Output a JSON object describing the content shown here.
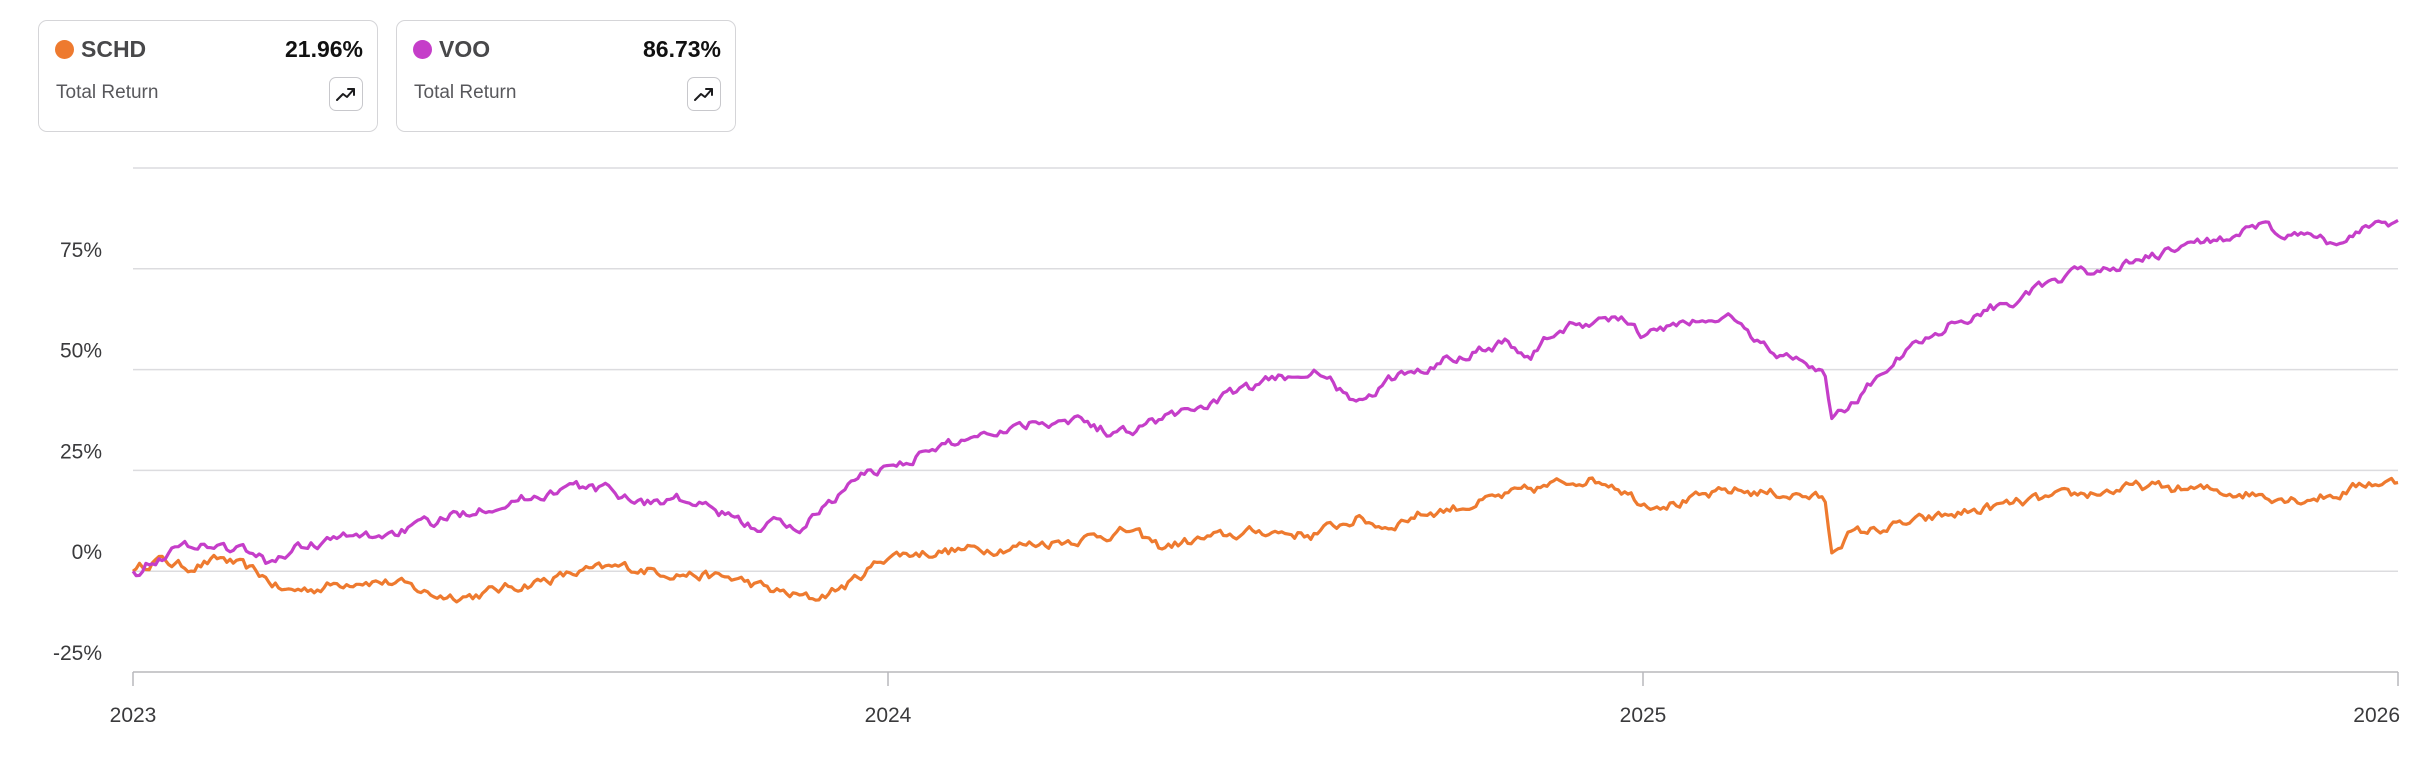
{
  "cards": [
    {
      "ticker": "SCHD",
      "value": "21.96%",
      "label": "Total Return",
      "color": "#ee7a2f",
      "icon": "trend-up-icon"
    },
    {
      "ticker": "VOO",
      "value": "86.73%",
      "label": "Total Return",
      "color": "#c53ec9",
      "icon": "trend-up-icon"
    }
  ],
  "chart_data": {
    "type": "line",
    "xlabel": "",
    "ylabel": "",
    "xlim": [
      2023.0,
      2026.0
    ],
    "ylim": [
      -25,
      100
    ],
    "x_ticks": [
      {
        "value": 2023,
        "label": "2023"
      },
      {
        "value": 2024,
        "label": "2024"
      },
      {
        "value": 2025,
        "label": "2025"
      },
      {
        "value": 2026,
        "label": "2026"
      }
    ],
    "y_ticks": [
      {
        "value": 75,
        "label": "75%"
      },
      {
        "value": 50,
        "label": "50%"
      },
      {
        "value": 25,
        "label": "25%"
      },
      {
        "value": 0,
        "label": "0%"
      },
      {
        "value": -25,
        "label": "-25%"
      }
    ],
    "grid": true,
    "legend": "top-left",
    "series": [
      {
        "name": "SCHD",
        "color": "#ee7a2f",
        "points": [
          [
            2023.0,
            0
          ],
          [
            2023.03,
            3
          ],
          [
            2023.07,
            1
          ],
          [
            2023.12,
            3
          ],
          [
            2023.17,
            -1
          ],
          [
            2023.2,
            -5
          ],
          [
            2023.25,
            -4
          ],
          [
            2023.3,
            -2
          ],
          [
            2023.35,
            -3
          ],
          [
            2023.4,
            -6
          ],
          [
            2023.45,
            -6
          ],
          [
            2023.5,
            -4
          ],
          [
            2023.55,
            -2
          ],
          [
            2023.6,
            0
          ],
          [
            2023.65,
            1
          ],
          [
            2023.7,
            0
          ],
          [
            2023.75,
            -1
          ],
          [
            2023.8,
            -2
          ],
          [
            2023.85,
            -5
          ],
          [
            2023.9,
            -7
          ],
          [
            2023.95,
            -3
          ],
          [
            2024.0,
            4
          ],
          [
            2024.08,
            5
          ],
          [
            2024.16,
            6
          ],
          [
            2024.25,
            8
          ],
          [
            2024.32,
            10
          ],
          [
            2024.36,
            6
          ],
          [
            2024.42,
            8
          ],
          [
            2024.5,
            10
          ],
          [
            2024.56,
            9
          ],
          [
            2024.62,
            13
          ],
          [
            2024.66,
            11
          ],
          [
            2024.7,
            14
          ],
          [
            2024.76,
            16
          ],
          [
            2024.85,
            20
          ],
          [
            2024.92,
            23
          ],
          [
            2024.96,
            22
          ],
          [
            2025.0,
            17
          ],
          [
            2025.05,
            17
          ],
          [
            2025.12,
            20
          ],
          [
            2025.2,
            19
          ],
          [
            2025.24,
            18
          ],
          [
            2025.25,
            5
          ],
          [
            2025.27,
            9
          ],
          [
            2025.33,
            11
          ],
          [
            2025.41,
            14
          ],
          [
            2025.5,
            17
          ],
          [
            2025.58,
            19
          ],
          [
            2025.66,
            21
          ],
          [
            2025.75,
            20
          ],
          [
            2025.82,
            19
          ],
          [
            2025.87,
            18
          ],
          [
            2025.92,
            19
          ],
          [
            2025.96,
            22
          ],
          [
            2026.0,
            22
          ]
        ]
      },
      {
        "name": "VOO",
        "color": "#c53ec9",
        "points": [
          [
            2023.0,
            0
          ],
          [
            2023.04,
            4
          ],
          [
            2023.08,
            7
          ],
          [
            2023.12,
            6
          ],
          [
            2023.15,
            5
          ],
          [
            2023.18,
            2
          ],
          [
            2023.22,
            6
          ],
          [
            2023.27,
            8
          ],
          [
            2023.33,
            9
          ],
          [
            2023.4,
            12
          ],
          [
            2023.46,
            16
          ],
          [
            2023.52,
            18
          ],
          [
            2023.58,
            21
          ],
          [
            2023.63,
            20
          ],
          [
            2023.68,
            17
          ],
          [
            2023.72,
            18
          ],
          [
            2023.77,
            15
          ],
          [
            2023.82,
            11
          ],
          [
            2023.85,
            12
          ],
          [
            2023.88,
            10
          ],
          [
            2023.92,
            17
          ],
          [
            2023.97,
            24
          ],
          [
            2024.0,
            26
          ],
          [
            2024.06,
            30
          ],
          [
            2024.12,
            34
          ],
          [
            2024.19,
            37
          ],
          [
            2024.25,
            38
          ],
          [
            2024.3,
            34
          ],
          [
            2024.35,
            37
          ],
          [
            2024.4,
            40
          ],
          [
            2024.46,
            44
          ],
          [
            2024.52,
            48
          ],
          [
            2024.56,
            50
          ],
          [
            2024.6,
            45
          ],
          [
            2024.63,
            41
          ],
          [
            2024.66,
            47
          ],
          [
            2024.7,
            50
          ],
          [
            2024.76,
            54
          ],
          [
            2024.82,
            57
          ],
          [
            2024.85,
            53
          ],
          [
            2024.88,
            59
          ],
          [
            2024.93,
            62
          ],
          [
            2024.97,
            63
          ],
          [
            2025.0,
            58
          ],
          [
            2025.04,
            61
          ],
          [
            2025.08,
            62
          ],
          [
            2025.12,
            63
          ],
          [
            2025.15,
            57
          ],
          [
            2025.18,
            54
          ],
          [
            2025.21,
            52
          ],
          [
            2025.24,
            50
          ],
          [
            2025.25,
            38
          ],
          [
            2025.27,
            40
          ],
          [
            2025.29,
            44
          ],
          [
            2025.33,
            52
          ],
          [
            2025.4,
            61
          ],
          [
            2025.5,
            68
          ],
          [
            2025.58,
            74
          ],
          [
            2025.66,
            77
          ],
          [
            2025.75,
            82
          ],
          [
            2025.82,
            85
          ],
          [
            2025.87,
            83
          ],
          [
            2025.92,
            81
          ],
          [
            2025.96,
            86
          ],
          [
            2026.0,
            87
          ]
        ]
      }
    ]
  }
}
